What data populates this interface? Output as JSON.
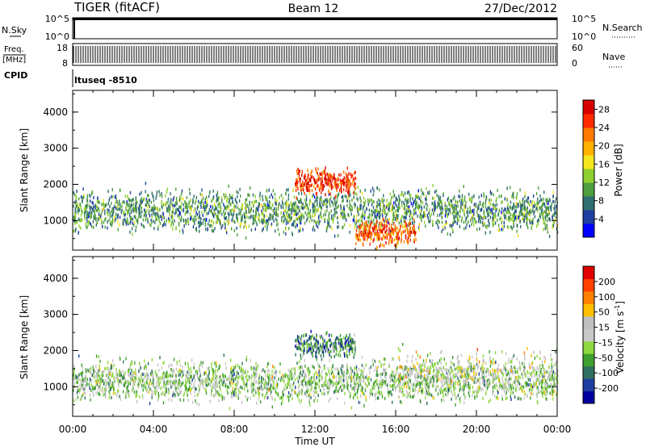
{
  "header": {
    "station": "TIGER (fitACF)",
    "beam": "Beam 12",
    "date": "27/Dec/2012"
  },
  "strips": {
    "nsky": {
      "label": "N.Sky",
      "ticks": [
        "10^5",
        "10^0"
      ],
      "right_label": "N.Search",
      "right_ticks": [
        "10^5",
        "10^0"
      ]
    },
    "freq": {
      "label_line1": "Freq.",
      "label_line2": "[MHz]",
      "ticks": [
        "18",
        "8"
      ],
      "right_label": "Nave",
      "right_ticks": [
        "60",
        "0"
      ]
    },
    "cpid": {
      "label": "CPID",
      "value": "ltuseq -8510"
    }
  },
  "colors": {
    "power": [
      "#0000ff",
      "#1f3f9f",
      "#2f6f6f",
      "#4f9f3f",
      "#8fcf2f",
      "#f5e51f",
      "#ffb000",
      "#ff7a00",
      "#ff2a00",
      "#d80000"
    ],
    "velocity": [
      "#0000a0",
      "#1f3fa0",
      "#2f6f5f",
      "#3f9f2f",
      "#8fd83f",
      "#c8c8c8",
      "#c0c0c0",
      "#ffc000",
      "#ff8000",
      "#ff4000",
      "#e00000"
    ]
  },
  "chart_data": [
    {
      "type": "heatmap",
      "name": "power",
      "ylabel": "Slant Range [km]",
      "yticks": [
        "1000",
        "2000",
        "3000",
        "4000"
      ],
      "ylim": [
        180,
        4600
      ],
      "xticks": [
        "00:00",
        "04:00",
        "08:00",
        "12:00",
        "16:00",
        "20:00",
        "00:00"
      ],
      "xlim": [
        0,
        24
      ],
      "colorbar": {
        "label": "Power [dB]",
        "ticks": [
          "4",
          "8",
          "12",
          "16",
          "20",
          "24",
          "28"
        ],
        "range": [
          0,
          30
        ]
      },
      "regions": [
        {
          "hours": [
            0,
            24
          ],
          "center_km": 1300,
          "spread_km": 500,
          "value": 10
        },
        {
          "hours": [
            11,
            14
          ],
          "center_km": 2100,
          "spread_km": 300,
          "value": 26
        },
        {
          "hours": [
            14,
            17
          ],
          "center_km": 700,
          "spread_km": 300,
          "value": 24
        }
      ]
    },
    {
      "type": "heatmap",
      "name": "velocity",
      "ylabel": "Slant Range [km]",
      "yticks": [
        "1000",
        "2000",
        "3000",
        "4000"
      ],
      "ylim": [
        180,
        4600
      ],
      "xticks": [
        "00:00",
        "04:00",
        "08:00",
        "12:00",
        "16:00",
        "20:00",
        "00:00"
      ],
      "xlabel": "Time UT",
      "xlim": [
        0,
        24
      ],
      "colorbar": {
        "label": "Velocity [m s^-1]",
        "ticks": [
          "200",
          "100",
          "50",
          "15",
          "-15",
          "-50",
          "-100",
          "-200"
        ],
        "range": [
          -250,
          250
        ]
      },
      "regions": [
        {
          "hours": [
            0,
            24
          ],
          "center_km": 1200,
          "spread_km": 500,
          "value": -40
        },
        {
          "hours": [
            11,
            14
          ],
          "center_km": 2200,
          "spread_km": 300,
          "value": -120
        },
        {
          "hours": [
            16,
            24
          ],
          "center_km": 1500,
          "spread_km": 500,
          "value": 20
        }
      ]
    }
  ]
}
